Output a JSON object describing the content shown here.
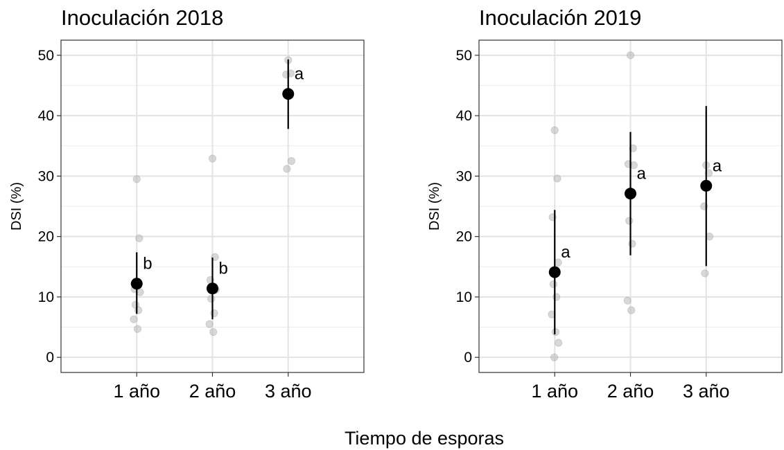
{
  "figure": {
    "shared_xlabel": "Tiempo de esporas"
  },
  "chart_data": [
    {
      "type": "scatter",
      "title": "Inoculación 2018",
      "xlabel": "",
      "ylabel": "DSI (%)",
      "categories": [
        "1 año",
        "2 año",
        "3 año"
      ],
      "ylim": [
        -2.5,
        52.5
      ],
      "yticks": [
        0,
        10,
        20,
        30,
        40,
        50
      ],
      "grid": true,
      "legend": "none",
      "summary": [
        {
          "category": "1 año",
          "mean": 12.2,
          "lower": 7.2,
          "upper": 17.4,
          "letter": "b"
        },
        {
          "category": "2 año",
          "mean": 11.4,
          "lower": 6.3,
          "upper": 16.5,
          "letter": "b"
        },
        {
          "category": "3 año",
          "mean": 43.6,
          "lower": 37.8,
          "upper": 49.3,
          "letter": "a"
        }
      ],
      "raw_points": [
        {
          "category": "1 año",
          "values": [
            29.5,
            19.7,
            11.3,
            10.8,
            8.7,
            7.8,
            6.3,
            4.7
          ]
        },
        {
          "category": "2 año",
          "values": [
            32.9,
            16.6,
            12.8,
            11.2,
            9.7,
            7.3,
            5.5,
            4.2
          ]
        },
        {
          "category": "3 año",
          "values": [
            49.2,
            47.0,
            46.8,
            32.5,
            31.2
          ]
        }
      ]
    },
    {
      "type": "scatter",
      "title": "Inoculación 2019",
      "xlabel": "",
      "ylabel": "DSI (%)",
      "categories": [
        "1 año",
        "2 año",
        "3 año"
      ],
      "ylim": [
        -2.5,
        52.5
      ],
      "yticks": [
        0,
        10,
        20,
        30,
        40,
        50
      ],
      "grid": true,
      "legend": "none",
      "summary": [
        {
          "category": "1 año",
          "mean": 14.1,
          "lower": 3.8,
          "upper": 24.4,
          "letter": "a"
        },
        {
          "category": "2 año",
          "mean": 27.1,
          "lower": 16.9,
          "upper": 37.3,
          "letter": "a"
        },
        {
          "category": "3 año",
          "mean": 28.4,
          "lower": 15.1,
          "upper": 41.6,
          "letter": "a"
        }
      ],
      "raw_points": [
        {
          "category": "1 año",
          "values": [
            37.6,
            29.6,
            23.2,
            15.7,
            12.1,
            10.0,
            7.1,
            4.2,
            2.4,
            0.0
          ]
        },
        {
          "category": "2 año",
          "values": [
            50.0,
            34.6,
            32.0,
            31.8,
            22.6,
            18.8,
            9.4,
            7.8
          ]
        },
        {
          "category": "3 año",
          "values": [
            31.8,
            30.5,
            25.0,
            20.0,
            13.9
          ]
        }
      ]
    }
  ]
}
